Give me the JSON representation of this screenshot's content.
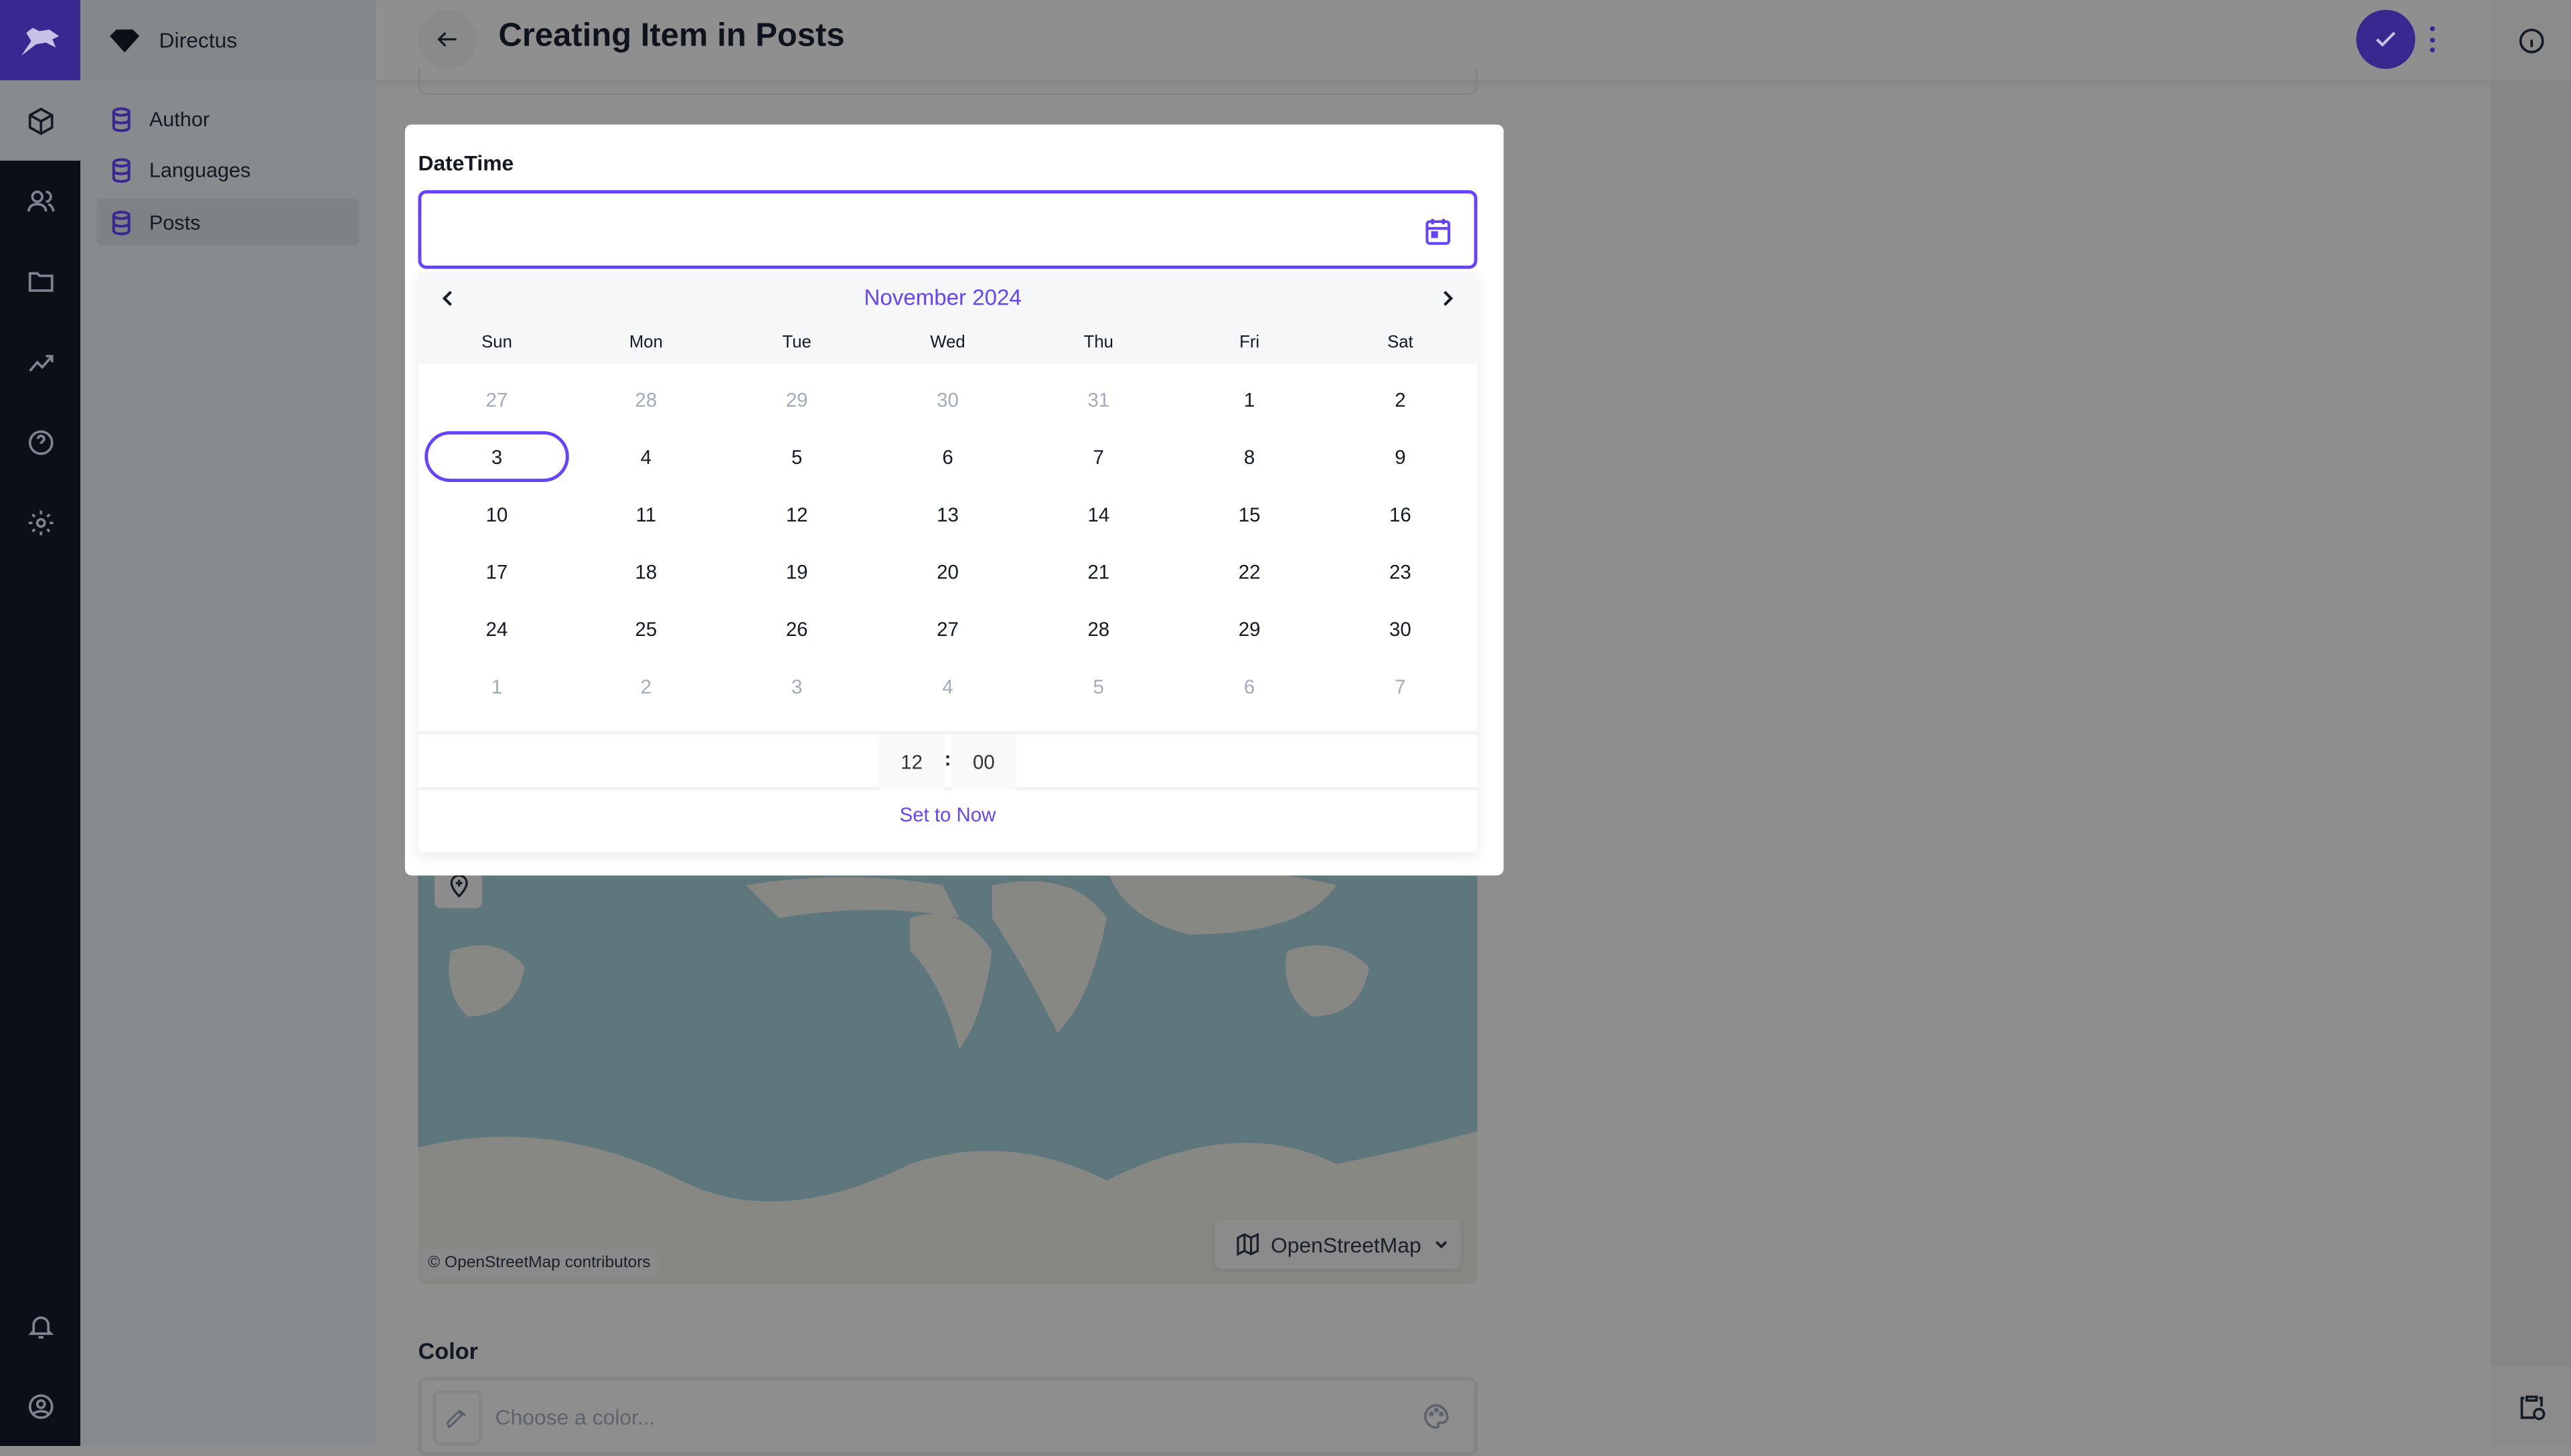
{
  "app": {
    "name": "Directus"
  },
  "nav": {
    "items": [
      {
        "label": "Author"
      },
      {
        "label": "Languages"
      },
      {
        "label": "Posts",
        "active": true
      }
    ]
  },
  "rail": {
    "icons": [
      "box-icon",
      "users-icon",
      "folder-icon",
      "insights-icon",
      "help-icon",
      "settings-icon",
      "bell-icon",
      "account-icon"
    ]
  },
  "header": {
    "title": "Creating Item in Posts"
  },
  "datetime": {
    "label": "DateTime",
    "value": "",
    "month_label": "November 2024",
    "weekdays": [
      "Sun",
      "Mon",
      "Tue",
      "Wed",
      "Thu",
      "Fri",
      "Sat"
    ],
    "weeks": [
      [
        "27",
        "28",
        "29",
        "30",
        "31",
        "1",
        "2"
      ],
      [
        "3",
        "4",
        "5",
        "6",
        "7",
        "8",
        "9"
      ],
      [
        "10",
        "11",
        "12",
        "13",
        "14",
        "15",
        "16"
      ],
      [
        "17",
        "18",
        "19",
        "20",
        "21",
        "22",
        "23"
      ],
      [
        "24",
        "25",
        "26",
        "27",
        "28",
        "29",
        "30"
      ],
      [
        "1",
        "2",
        "3",
        "4",
        "5",
        "6",
        "7"
      ]
    ],
    "highlighted_day": "3",
    "hour": "12",
    "minute": "00",
    "separator": ":",
    "set_now_label": "Set to Now"
  },
  "map": {
    "attribution": "© OpenStreetMap contributors",
    "basemap": "OpenStreetMap"
  },
  "color": {
    "label": "Color",
    "placeholder": "Choose a color..."
  },
  "colors": {
    "accent": "#6644ff",
    "brand": "#3a2790",
    "rail": "#0b1018"
  }
}
